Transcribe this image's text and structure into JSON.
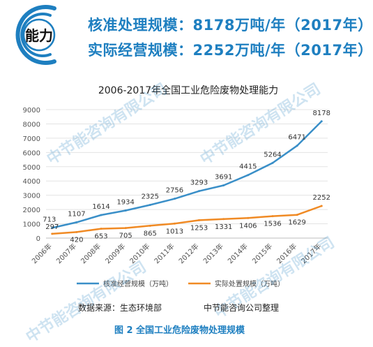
{
  "header": {
    "logo_text": "能力",
    "line1": "核准处理规模：8178万吨/年（2017年）",
    "line2": "实际经营规模：2252万吨/年（2017年）"
  },
  "watermark": "中节能咨询有限公司",
  "chart_data": {
    "type": "line",
    "title": "2006-2017年全国工业危险废物处理能力",
    "categories": [
      "2006年",
      "2007年",
      "2008年",
      "2009年",
      "2010年",
      "2011年",
      "2012年",
      "2013年",
      "2014年",
      "2015年",
      "2016年",
      "2017年"
    ],
    "ylim": [
      0,
      9000
    ],
    "yticks": [
      0,
      1000,
      2000,
      3000,
      4000,
      5000,
      6000,
      7000,
      8000,
      9000
    ],
    "grid": true,
    "legend_position": "bottom",
    "series": [
      {
        "name": "核准经营规模（万吨）",
        "color": "#3a8fc8",
        "values": [
          713,
          1107,
          1614,
          1934,
          2325,
          2756,
          3293,
          3691,
          4415,
          5264,
          6471,
          8178
        ]
      },
      {
        "name": "实际处置规模（万吨）",
        "color": "#f08a24",
        "values": [
          297,
          420,
          653,
          705,
          865,
          1013,
          1253,
          1331,
          1406,
          1536,
          1629,
          2252
        ]
      }
    ]
  },
  "footer": {
    "source": "数据来源：生态环境部",
    "org": "中节能咨询公司整理",
    "caption": "图 2  全国工业危险废物处理规模"
  }
}
